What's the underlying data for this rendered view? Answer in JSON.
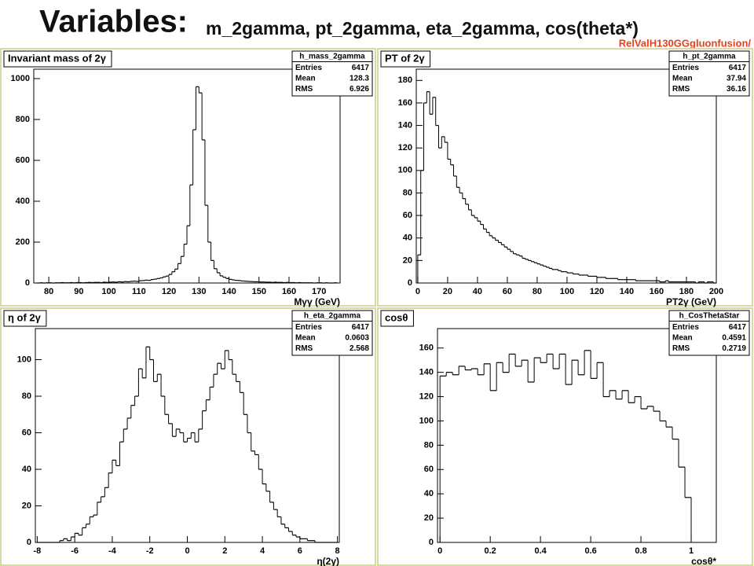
{
  "slide": {
    "title": "Variables:",
    "subtitle": "m_2gamma, pt_2gamma, eta_2gamma, cos(theta*)",
    "tag": "RelValH130GGgluonfusion/"
  },
  "chart_data": [
    {
      "type": "histogram",
      "title": "Invariant mass of 2γ",
      "x_label": "Mγγ (GeV)",
      "color": "#000000",
      "bins": [
        76,
        77,
        78,
        79,
        80,
        81,
        82,
        83,
        84,
        85,
        86,
        87,
        88,
        89,
        90,
        91,
        92,
        93,
        94,
        95,
        96,
        97,
        98,
        99,
        100,
        101,
        102,
        103,
        104,
        105,
        106,
        107,
        108,
        109,
        110,
        111,
        112,
        113,
        114,
        115,
        116,
        117,
        118,
        119,
        120,
        121,
        122,
        123,
        124,
        125,
        126,
        127,
        128,
        129,
        130,
        131,
        132,
        133,
        134,
        135,
        136,
        137,
        138,
        139,
        140,
        141,
        142,
        143,
        144,
        145,
        146,
        147,
        148,
        149,
        150,
        151,
        152,
        153,
        154,
        155,
        156,
        157,
        158,
        159,
        160,
        161,
        162,
        163,
        164,
        165,
        166,
        167,
        168,
        169,
        170,
        171,
        172,
        173,
        174,
        175,
        176
      ],
      "values": [
        0,
        1,
        0,
        1,
        1,
        0,
        1,
        1,
        2,
        1,
        1,
        2,
        1,
        2,
        2,
        1,
        2,
        3,
        2,
        3,
        3,
        2,
        4,
        3,
        4,
        5,
        4,
        6,
        5,
        7,
        6,
        8,
        9,
        8,
        11,
        12,
        14,
        13,
        17,
        19,
        22,
        25,
        30,
        34,
        42,
        55,
        68,
        95,
        130,
        190,
        280,
        480,
        750,
        960,
        930,
        700,
        380,
        200,
        110,
        70,
        50,
        35,
        28,
        22,
        18,
        15,
        13,
        12,
        10,
        9,
        8,
        7,
        6,
        6,
        5,
        5,
        4,
        4,
        3,
        4,
        3,
        3,
        2,
        3,
        2,
        2,
        1,
        2,
        1,
        1,
        1,
        1,
        0,
        1,
        1,
        0,
        1,
        0,
        0,
        1
      ],
      "xlim": [
        75,
        177
      ],
      "xticks": [
        80,
        90,
        100,
        110,
        120,
        130,
        140,
        150,
        160,
        170
      ],
      "ylim": [
        0,
        1046
      ],
      "yticks": [
        0,
        200,
        400,
        600,
        800,
        1000
      ],
      "stats": {
        "name": "h_mass_2gamma",
        "rows": [
          {
            "label": "Entries",
            "value": "6417"
          },
          {
            "label": "Mean",
            "value": "128.3"
          },
          {
            "label": "RMS",
            "value": "6.926"
          }
        ]
      }
    },
    {
      "type": "histogram",
      "title": "PT of 2γ",
      "x_label": "PT2γ (GeV)",
      "color": "#000000",
      "bins": [
        0,
        2,
        4,
        6,
        8,
        10,
        12,
        14,
        16,
        18,
        20,
        22,
        24,
        26,
        28,
        30,
        32,
        34,
        36,
        38,
        40,
        42,
        44,
        46,
        48,
        50,
        52,
        54,
        56,
        58,
        60,
        62,
        64,
        66,
        68,
        70,
        72,
        74,
        76,
        78,
        80,
        82,
        84,
        86,
        88,
        90,
        92,
        94,
        96,
        98,
        100,
        102,
        104,
        106,
        108,
        110,
        112,
        114,
        116,
        118,
        120,
        122,
        124,
        126,
        128,
        130,
        132,
        134,
        136,
        138,
        140,
        142,
        144,
        146,
        148,
        150,
        152,
        154,
        156,
        158,
        160,
        162,
        164,
        166,
        168,
        170,
        172,
        174,
        176,
        178,
        180,
        182,
        184,
        186,
        188,
        190,
        192,
        194,
        196,
        198,
        200
      ],
      "values": [
        25,
        100,
        160,
        170,
        150,
        165,
        140,
        120,
        130,
        125,
        110,
        105,
        95,
        85,
        80,
        75,
        70,
        65,
        60,
        58,
        55,
        52,
        48,
        45,
        42,
        40,
        38,
        36,
        34,
        32,
        30,
        28,
        26,
        25,
        24,
        22,
        21,
        20,
        19,
        18,
        17,
        16,
        15,
        14,
        13,
        12,
        12,
        11,
        10,
        10,
        9,
        9,
        8,
        8,
        7,
        7,
        7,
        6,
        6,
        6,
        5,
        5,
        5,
        4,
        4,
        4,
        4,
        3,
        3,
        3,
        3,
        3,
        3,
        2,
        2,
        2,
        2,
        2,
        2,
        2,
        2,
        1,
        1,
        2,
        1,
        1,
        1,
        1,
        1,
        1,
        1,
        1,
        1,
        0,
        1,
        1,
        0,
        1,
        1,
        0
      ],
      "xlim": [
        -1,
        200
      ],
      "xticks": [
        0,
        20,
        40,
        60,
        80,
        100,
        120,
        140,
        160,
        180,
        200
      ],
      "ylim": [
        0,
        190
      ],
      "yticks": [
        0,
        20,
        40,
        60,
        80,
        100,
        120,
        140,
        160,
        180
      ],
      "stats": {
        "name": "h_pt_2gamma",
        "rows": [
          {
            "label": "Entries",
            "value": "6417"
          },
          {
            "label": "Mean",
            "value": "37.94"
          },
          {
            "label": "RMS",
            "value": "36.16"
          }
        ]
      }
    },
    {
      "type": "histogram",
      "title": "η of 2γ",
      "x_label": "η(2γ)",
      "color": "#000000",
      "bins": [
        -8,
        -7.8,
        -7.6,
        -7.4,
        -7.2,
        -7,
        -6.8,
        -6.6,
        -6.4,
        -6.2,
        -6,
        -5.8,
        -5.6,
        -5.4,
        -5.2,
        -5,
        -4.8,
        -4.6,
        -4.4,
        -4.2,
        -4,
        -3.8,
        -3.6,
        -3.4,
        -3.2,
        -3,
        -2.8,
        -2.6,
        -2.4,
        -2.2,
        -2,
        -1.8,
        -1.6,
        -1.4,
        -1.2,
        -1,
        -0.8,
        -0.6,
        -0.4,
        -0.2,
        0,
        0.2,
        0.4,
        0.6,
        0.8,
        1,
        1.2,
        1.4,
        1.6,
        1.8,
        2,
        2.2,
        2.4,
        2.6,
        2.8,
        3,
        3.2,
        3.4,
        3.6,
        3.8,
        4,
        4.2,
        4.4,
        4.6,
        4.8,
        5,
        5.2,
        5.4,
        5.6,
        5.8,
        6,
        6.2,
        6.4,
        6.6,
        6.8,
        7,
        7.2,
        7.4,
        7.6,
        7.8,
        8
      ],
      "values": [
        0,
        0,
        0,
        0,
        0,
        0,
        1,
        2,
        1,
        3,
        5,
        4,
        8,
        10,
        14,
        15,
        22,
        25,
        30,
        38,
        45,
        42,
        55,
        62,
        68,
        75,
        80,
        95,
        90,
        107,
        100,
        88,
        92,
        80,
        70,
        65,
        58,
        62,
        60,
        55,
        57,
        60,
        55,
        62,
        72,
        78,
        85,
        92,
        98,
        95,
        105,
        100,
        92,
        88,
        82,
        70,
        60,
        50,
        48,
        40,
        32,
        28,
        22,
        18,
        14,
        10,
        8,
        6,
        4,
        3,
        2,
        2,
        1,
        1,
        0,
        0,
        0,
        0,
        0,
        0
      ],
      "xlim": [
        -8.1,
        8.1
      ],
      "xticks": [
        -8,
        -6,
        -4,
        -2,
        0,
        2,
        4,
        6,
        8
      ],
      "ylim": [
        0,
        117
      ],
      "yticks": [
        0,
        20,
        40,
        60,
        80,
        100
      ],
      "stats": {
        "name": "h_eta_2gamma",
        "rows": [
          {
            "label": "Entries",
            "value": "6417"
          },
          {
            "label": "Mean",
            "value": "0.0603"
          },
          {
            "label": "RMS",
            "value": "2.568"
          }
        ]
      }
    },
    {
      "type": "histogram",
      "title": "cosθ",
      "x_label": "cosθ*",
      "color": "#000000",
      "bins": [
        0,
        0.025,
        0.05,
        0.075,
        0.1,
        0.125,
        0.15,
        0.175,
        0.2,
        0.225,
        0.25,
        0.275,
        0.3,
        0.325,
        0.35,
        0.375,
        0.4,
        0.425,
        0.45,
        0.475,
        0.5,
        0.525,
        0.55,
        0.575,
        0.6,
        0.625,
        0.65,
        0.675,
        0.7,
        0.725,
        0.75,
        0.775,
        0.8,
        0.825,
        0.85,
        0.875,
        0.9,
        0.925,
        0.95,
        0.975,
        1
      ],
      "values": [
        137,
        140,
        138,
        145,
        142,
        143,
        138,
        147,
        125,
        148,
        140,
        155,
        145,
        150,
        132,
        152,
        148,
        155,
        143,
        155,
        130,
        150,
        138,
        158,
        135,
        148,
        120,
        125,
        118,
        125,
        115,
        120,
        110,
        112,
        108,
        100,
        95,
        85,
        62,
        37
      ],
      "xlim": [
        -0.01,
        1.1
      ],
      "xticks": [
        0,
        0.2,
        0.4,
        0.6,
        0.8,
        1
      ],
      "ylim": [
        0,
        176
      ],
      "yticks": [
        0,
        20,
        40,
        60,
        80,
        100,
        120,
        140,
        160
      ],
      "stats": {
        "name": "h_CosThetaStar",
        "rows": [
          {
            "label": "Entries",
            "value": "6417"
          },
          {
            "label": "Mean",
            "value": "0.4591"
          },
          {
            "label": "RMS",
            "value": "0.2719"
          }
        ]
      }
    }
  ]
}
